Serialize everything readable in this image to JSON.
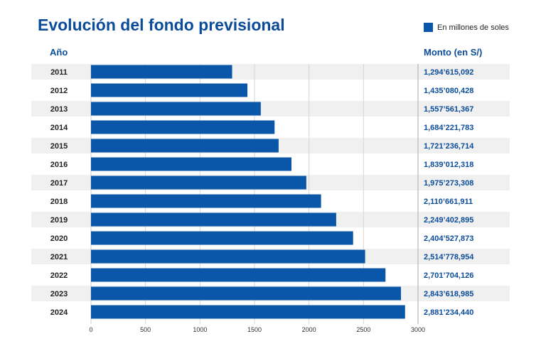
{
  "title": "Evolución del fondo previsional",
  "legend": {
    "label": "En millones de soles",
    "color": "#0a56a8"
  },
  "headers": {
    "year": "Año",
    "amount": "Monto (en S/)"
  },
  "colors": {
    "bar": "#0a56a8",
    "row_band": "#f0f0f0",
    "title": "#0a4c9a",
    "grid": "#d6d6d6"
  },
  "chart_data": {
    "type": "bar",
    "orientation": "horizontal",
    "title": "Evolución del fondo previsional",
    "unit": "En millones de soles",
    "categories": [
      "2011",
      "2012",
      "2013",
      "2014",
      "2015",
      "2016",
      "2017",
      "2018",
      "2019",
      "2020",
      "2021",
      "2022",
      "2023",
      "2024"
    ],
    "values": [
      1294.615092,
      1435.080428,
      1557.561367,
      1684.221783,
      1721.236714,
      1839.012318,
      1975.273308,
      2110.661911,
      2249.402895,
      2404.527873,
      2514.778954,
      2701.704126,
      2843.618985,
      2881.23444
    ],
    "value_labels": [
      "1,294’615,092",
      "1,435’080,428",
      "1,557’561,367",
      "1,684’221,783",
      "1,721’236,714",
      "1,839’012,318",
      "1,975’273,308",
      "2,110’661,911",
      "2,249’402,895",
      "2,404’527,873",
      "2,514’778,954",
      "2,701’704,126",
      "2,843’618,985",
      "2,881’234,440"
    ],
    "xlim": [
      0,
      3000
    ],
    "xticks": [
      0,
      500,
      1000,
      1500,
      2000,
      2500,
      3000
    ],
    "grid": true
  }
}
